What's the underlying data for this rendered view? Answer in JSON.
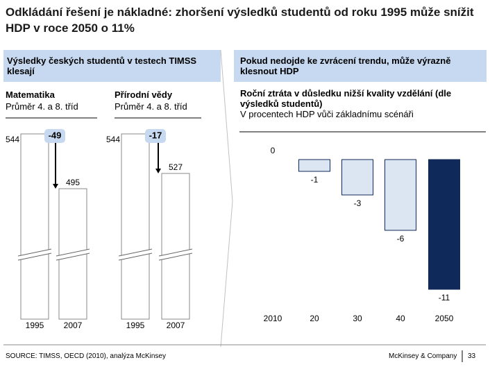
{
  "title": "Odkládání řešení je nákladné: zhoršení výsledků studentů od roku 1995 může snížit HDP v roce 2050 o 11%",
  "left_header": "Výsledky českých studentů v testech TIMSS klesají",
  "right_header": "Pokud nedojde ke zvrácení trendu, může výrazně klesnout HDP",
  "chart_data": [
    {
      "type": "bar",
      "title": "Matematika",
      "subtitle": "Průměr 4. a 8. tříd",
      "categories": [
        "1995",
        "2007"
      ],
      "values": [
        544,
        495
      ],
      "change": -49,
      "broken_axis": true,
      "color": "#ffffff"
    },
    {
      "type": "bar",
      "title": "Přírodní vědy",
      "subtitle": "Průměr 4. a 8. tříd",
      "categories": [
        "1995",
        "2007"
      ],
      "values": [
        544,
        527
      ],
      "change": -17,
      "broken_axis": true,
      "color": "#ffffff"
    },
    {
      "type": "bar",
      "title": "Roční ztráta v důsledku nižší kvality vzdělání (dle výsledků studentů)",
      "subtitle": "V procentech HDP vůči základnímu scénáři",
      "categories": [
        "2010",
        "20",
        "30",
        "40",
        "2050"
      ],
      "values": [
        0,
        -1,
        -3,
        -6,
        -11
      ],
      "colors": [
        "#dce6f2",
        "#dce6f2",
        "#dce6f2",
        "#dce6f2",
        "#0f2a5a"
      ],
      "broken_axis": false
    }
  ],
  "source": "SOURCE: TIMSS, OECD (2010), analýza McKinsey",
  "company": "McKinsey & Company",
  "page": "33"
}
